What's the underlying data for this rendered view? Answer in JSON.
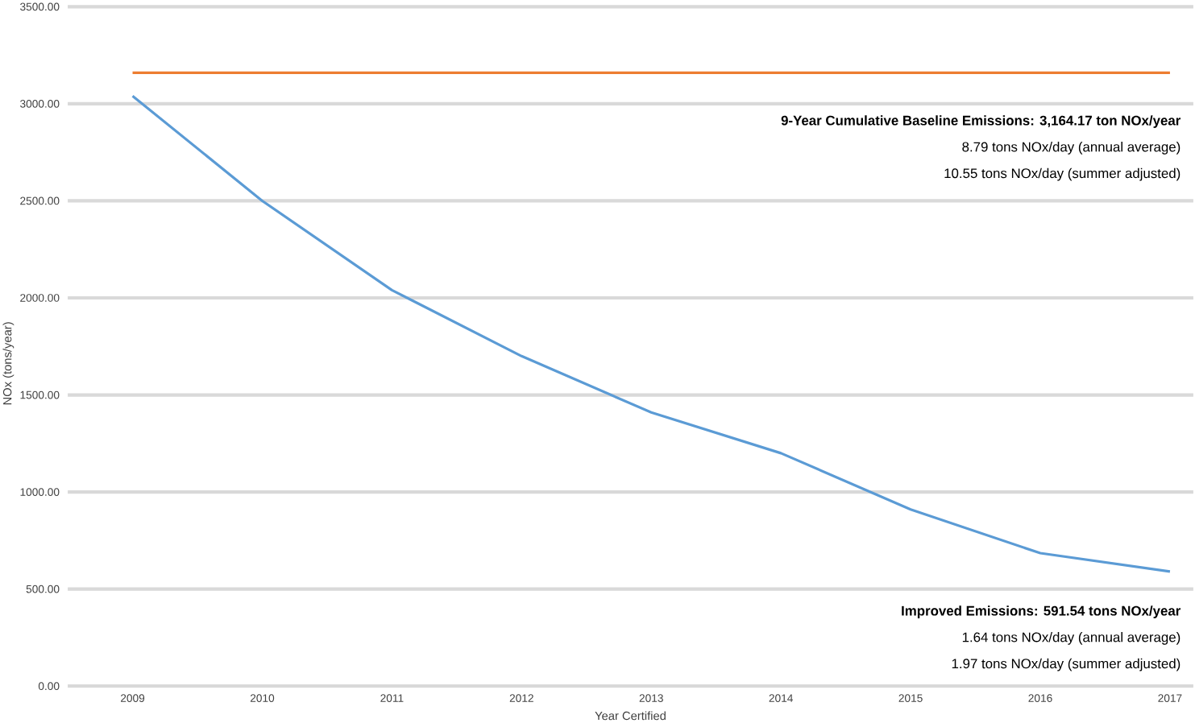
{
  "chart_data": {
    "type": "line",
    "xlabel": "Year Certified",
    "ylabel": "NOx (tons/year)",
    "categories": [
      "2009",
      "2010",
      "2011",
      "2012",
      "2013",
      "2014",
      "2015",
      "2016",
      "2017"
    ],
    "series": [
      {
        "color": "#5b9bd5",
        "values": [
          3040,
          2500,
          2040,
          1700,
          1410,
          1200,
          910,
          685,
          590
        ]
      },
      {
        "color": "#ed7d31",
        "values": [
          3160,
          3160,
          3160,
          3160,
          3160,
          3160,
          3160,
          3160,
          3160
        ]
      }
    ],
    "ylim": [
      0,
      3500
    ],
    "yticks": [
      {
        "value": 0,
        "label": "0.00"
      },
      {
        "value": 500,
        "label": "500.00"
      },
      {
        "value": 1000,
        "label": "1000.00"
      },
      {
        "value": 1500,
        "label": "1500.00"
      },
      {
        "value": 2000,
        "label": "2000.00"
      },
      {
        "value": 2500,
        "label": "2500.00"
      },
      {
        "value": 3000,
        "label": "3000.00"
      },
      {
        "value": 3500,
        "label": "3500.00"
      }
    ],
    "grid": "y",
    "legend": false,
    "marker": "none",
    "line_style": "solid",
    "annotations": [
      "9-Year Cumulative Baseline Emissions:  3,164.17 ton NOx/year",
      "8.79 tons NOx/day (annual average)",
      "10.55 tons NOx/day (summer adjusted)",
      "Improved Emissions: 591.54 tons NOx/year",
      "1.64 tons NOx/day (annual average)",
      "1.97 tons NOx/day (summer adjusted)"
    ]
  }
}
